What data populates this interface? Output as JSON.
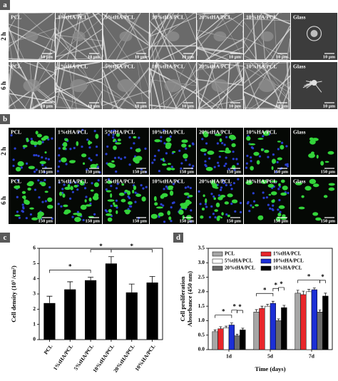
{
  "panels": {
    "a": {
      "label": "a",
      "rows": [
        "2 h",
        "6 h"
      ],
      "columns": [
        "PCL",
        "1%tHA/PCL",
        "5%tHA/PCL",
        "10%tHA/PCL",
        "20%tHA/PCL",
        "10%HA/PCL",
        "Glass"
      ],
      "scale_bar": "10 μm"
    },
    "b": {
      "label": "b",
      "rows": [
        "2 h",
        "6 h"
      ],
      "columns": [
        "PCL",
        "1%tHA/PCL",
        "5%tHA/PCL",
        "10%tHA/PCL",
        "20%tHA/PCL",
        "10%HA/PCL",
        "Glass"
      ],
      "scale_bar": "150 μm"
    }
  },
  "chart_data": [
    {
      "type": "bar",
      "panel": "c",
      "ylabel": "Cell density (10³ /cm²)",
      "categories": [
        "PCL",
        "1%tHA/PCL",
        "5%tHA/PCL",
        "10%tHA/PCL",
        "20%tHA/PCL",
        "10%HA/PCL"
      ],
      "values": [
        2.4,
        3.3,
        3.9,
        5.0,
        3.1,
        3.75
      ],
      "errors": [
        0.45,
        0.5,
        0.2,
        0.45,
        0.55,
        0.4
      ],
      "color": "#000000",
      "ylim": [
        0,
        6
      ],
      "yticks": [
        0,
        1,
        2,
        3,
        4,
        5,
        6
      ],
      "significance": [
        {
          "between": [
            "PCL",
            "5%tHA/PCL"
          ],
          "label": "*"
        },
        {
          "between": [
            "5%tHA/PCL",
            "10%tHA/PCL"
          ],
          "label": "*"
        },
        {
          "between": [
            "10%tHA/PCL",
            "10%HA/PCL"
          ],
          "label": "*"
        }
      ]
    },
    {
      "type": "grouped_bar",
      "panel": "d",
      "xlabel": "Time (days)",
      "ylabel": [
        "Cell proliferation",
        "Absorbance (450 nm)"
      ],
      "categories": [
        "1d",
        "5d",
        "7d"
      ],
      "series": [
        {
          "name": "PCL",
          "color": "#a6a6a6",
          "values": [
            0.62,
            1.3,
            1.95
          ],
          "errors": [
            0.06,
            0.08,
            0.1
          ]
        },
        {
          "name": "1%tHA/PCL",
          "color": "#e8262b",
          "values": [
            0.72,
            1.42,
            1.9
          ],
          "errors": [
            0.07,
            0.08,
            0.12
          ]
        },
        {
          "name": "5%tHA/PCL",
          "color": "#ffffff",
          "values": [
            0.75,
            1.5,
            2.0
          ],
          "errors": [
            0.06,
            0.07,
            0.08
          ]
        },
        {
          "name": "10%tHA/PCL",
          "color": "#1c2fd6",
          "values": [
            0.85,
            1.6,
            2.07
          ],
          "errors": [
            0.07,
            0.07,
            0.06
          ]
        },
        {
          "name": "20%tHA/PCL",
          "color": "#6b6b6b",
          "values": [
            0.48,
            1.0,
            1.3
          ],
          "errors": [
            0.05,
            0.06,
            0.07
          ]
        },
        {
          "name": "10%HA/PCL",
          "color": "#000000",
          "values": [
            0.68,
            1.45,
            1.85
          ],
          "errors": [
            0.06,
            0.08,
            0.1
          ]
        }
      ],
      "ylim": [
        0,
        3.5
      ],
      "yticks": [
        {
          "value": 0,
          "label": "0.0"
        },
        0.5,
        {
          "value": 1,
          "label": "1.0"
        },
        1.5,
        {
          "value": 2,
          "label": "2.0"
        },
        2.5,
        {
          "value": 3,
          "label": "3.0"
        },
        3.5
      ],
      "legend": "upper left",
      "significance": [
        {
          "category": "1d",
          "between": [
            "PCL",
            "10%tHA/PCL"
          ],
          "label": "*"
        },
        {
          "category": "1d",
          "between": [
            "10%tHA/PCL",
            "20%tHA/PCL"
          ],
          "label": "*"
        },
        {
          "category": "1d",
          "between": [
            "20%tHA/PCL",
            "10%HA/PCL"
          ],
          "label": "*"
        },
        {
          "category": "5d",
          "between": [
            "PCL",
            "10%tHA/PCL"
          ],
          "label": "*"
        },
        {
          "category": "5d",
          "between": [
            "10%tHA/PCL",
            "20%tHA/PCL"
          ],
          "label": "*"
        },
        {
          "category": "5d",
          "between": [
            "20%tHA/PCL",
            "10%HA/PCL"
          ],
          "label": "*"
        },
        {
          "category": "7d",
          "between": [
            "PCL",
            "20%tHA/PCL"
          ],
          "label": "*"
        },
        {
          "category": "7d",
          "between": [
            "20%tHA/PCL",
            "10%HA/PCL"
          ],
          "label": "*"
        }
      ]
    }
  ]
}
